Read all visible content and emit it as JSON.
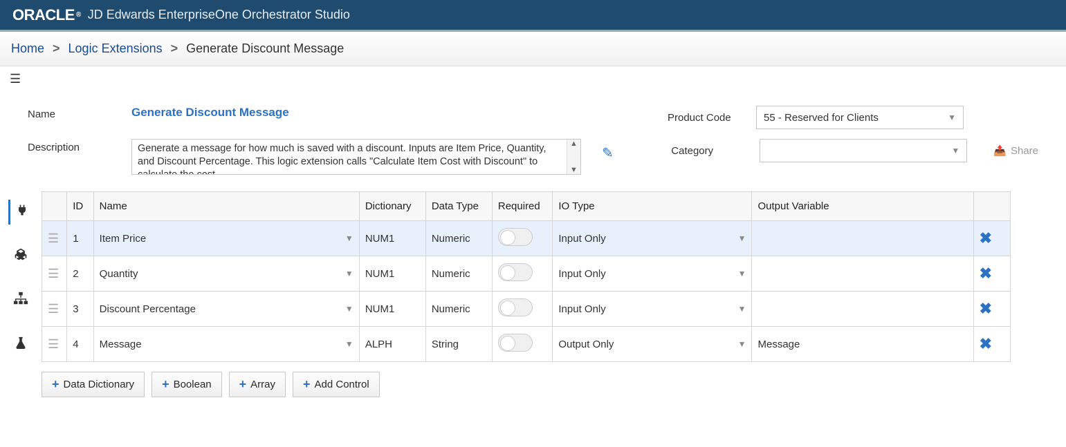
{
  "colors": {
    "header_bg": "#1e4b6e",
    "link": "#1a4b8c",
    "accent": "#2b72c2",
    "row_selected": "#e8f1fb",
    "border": "#d4d4d4"
  },
  "header": {
    "logo_text": "ORACLE",
    "logo_reg": "®",
    "app_title": "JD Edwards EnterpriseOne Orchestrator Studio"
  },
  "breadcrumbs": {
    "home": "Home",
    "mid": "Logic Extensions",
    "current": "Generate Discount Message"
  },
  "form": {
    "name_label": "Name",
    "name_value": "Generate Discount Message",
    "desc_label": "Description",
    "desc_value": "Generate a message for how much is saved with a discount. Inputs are Item Price, Quantity, and Discount Percentage. This logic extension calls \"Calculate Item Cost with Discount\" to calculate the cost.",
    "product_code_label": "Product Code",
    "product_code_value": "55 - Reserved for Clients",
    "category_label": "Category",
    "category_value": "",
    "share_label": "Share"
  },
  "tabs": {
    "plug": "plug-icon",
    "cubes": "cubes-icon",
    "tree": "tree-icon",
    "flask": "flask-icon"
  },
  "table": {
    "headers": {
      "id": "ID",
      "name": "Name",
      "dict": "Dictionary",
      "type": "Data Type",
      "req": "Required",
      "io": "IO Type",
      "outv": "Output Variable"
    },
    "rows": [
      {
        "id": "1",
        "name": "Item Price",
        "dict": "NUM1",
        "type": "Numeric",
        "req": false,
        "io": "Input Only",
        "outv": "",
        "selected": true
      },
      {
        "id": "2",
        "name": "Quantity",
        "dict": "NUM1",
        "type": "Numeric",
        "req": false,
        "io": "Input Only",
        "outv": "",
        "selected": false
      },
      {
        "id": "3",
        "name": "Discount Percentage",
        "dict": "NUM1",
        "type": "Numeric",
        "req": false,
        "io": "Input Only",
        "outv": "",
        "selected": false
      },
      {
        "id": "4",
        "name": "Message",
        "dict": "ALPH",
        "type": "String",
        "req": false,
        "io": "Output Only",
        "outv": "Message",
        "selected": false
      }
    ]
  },
  "buttons": {
    "dd": "Data Dictionary",
    "bool": "Boolean",
    "arr": "Array",
    "ctrl": "Add Control"
  }
}
